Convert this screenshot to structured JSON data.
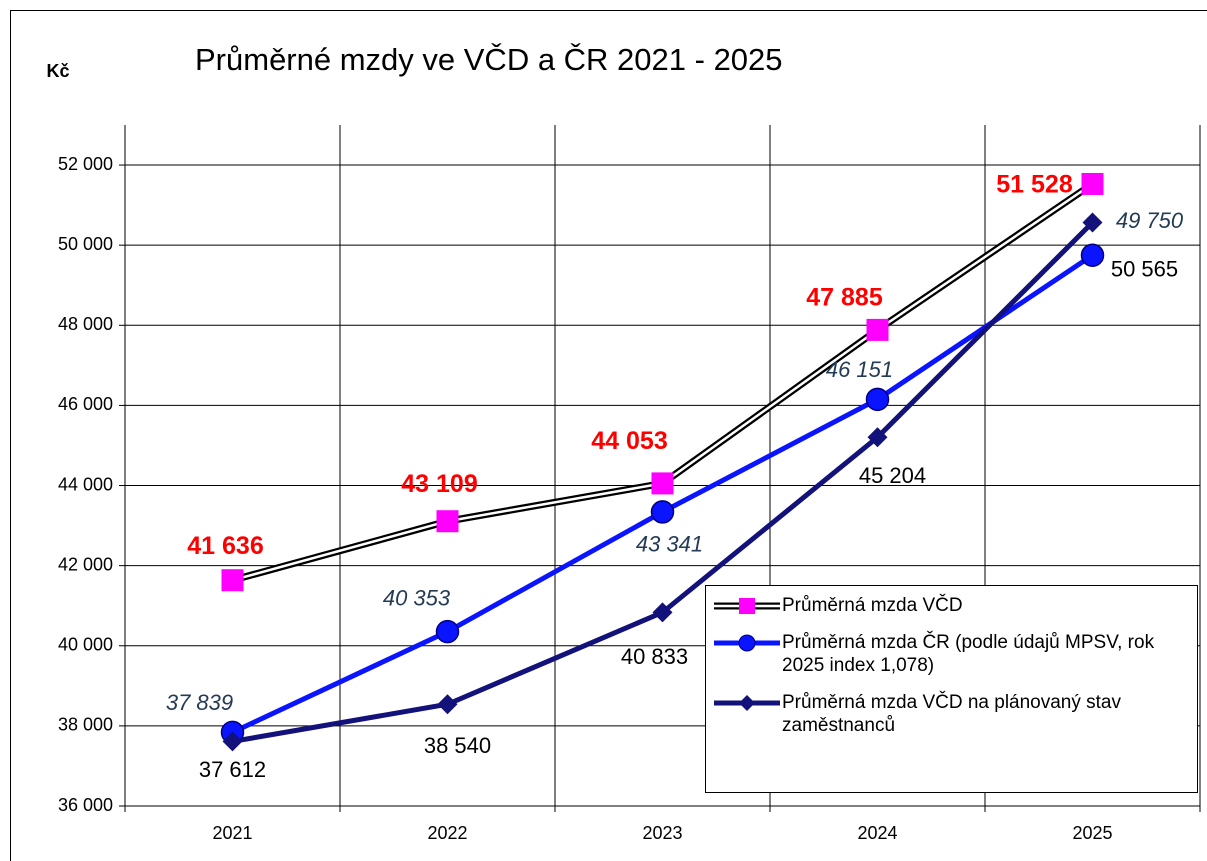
{
  "chart_data": {
    "type": "line",
    "title": "Průměrné mzdy ve VČD a ČR  2021 - 2025",
    "y_label": "Kč",
    "categories": [
      "2021",
      "2022",
      "2023",
      "2024",
      "2025"
    ],
    "series": [
      {
        "name": "Průměrná mzda VČD",
        "color": "#ff00ff",
        "line_color": "#000000",
        "label_color": "#ff0000",
        "values": [
          41636,
          43109,
          44053,
          47885,
          51528
        ],
        "value_labels": [
          "41 636",
          "43 109",
          "44 053",
          "47 885",
          "51 528"
        ]
      },
      {
        "name": "Průměrná mzda ČR  (podle údajů MPSV, rok 2025 index 1,078)",
        "color": "#0a14ff",
        "label_color": "#243b55",
        "values": [
          37839,
          40353,
          43341,
          46151,
          49750
        ],
        "value_labels": [
          "37 839",
          "40 353",
          "43 341",
          "46 151",
          "49 750"
        ]
      },
      {
        "name": "Průměrná mzda VČD na plánovaný stav zaměstnanců",
        "color": "#12127a",
        "label_color": "#000000",
        "values": [
          37612,
          38540,
          40833,
          45204,
          50565
        ],
        "value_labels": [
          "37 612",
          "38 540",
          "40 833",
          "45 204",
          "50 565"
        ]
      }
    ],
    "ylim": [
      36000,
      53000
    ],
    "yticks": [
      {
        "value": 36000,
        "label": "36 000"
      },
      {
        "value": 38000,
        "label": "38 000"
      },
      {
        "value": 40000,
        "label": "40 000"
      },
      {
        "value": 42000,
        "label": "42 000"
      },
      {
        "value": 44000,
        "label": "44 000"
      },
      {
        "value": 46000,
        "label": "46 000"
      },
      {
        "value": 48000,
        "label": "48 000"
      },
      {
        "value": 50000,
        "label": "50 000"
      },
      {
        "value": 52000,
        "label": "52 000"
      }
    ],
    "grid": true
  }
}
